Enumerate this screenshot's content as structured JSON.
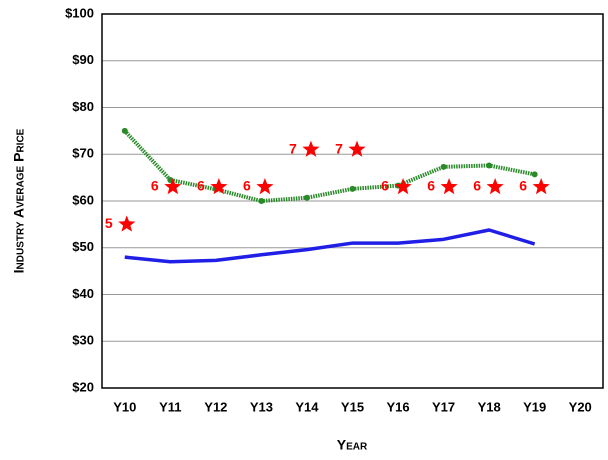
{
  "chart_data": {
    "type": "line",
    "xlabel": "Year",
    "ylabel": "Industry Average Price",
    "categories": [
      "Y10",
      "Y11",
      "Y12",
      "Y13",
      "Y14",
      "Y15",
      "Y16",
      "Y17",
      "Y18",
      "Y19",
      "Y20"
    ],
    "series": [
      {
        "color": "#1f1fe6",
        "style": "solid",
        "values": [
          48,
          47,
          47.3,
          48.5,
          49.6,
          51,
          51,
          51.8,
          53.8,
          50.8,
          null
        ]
      },
      {
        "color": "#2a8a2a",
        "style": "dotted",
        "values": [
          75,
          64.5,
          62.5,
          60,
          60.7,
          62.6,
          63.3,
          67.3,
          67.6,
          65.7,
          null
        ]
      }
    ],
    "stars": {
      "color": "#ff0000",
      "values": [
        55,
        63,
        63,
        63,
        71,
        71,
        63,
        63,
        63,
        63
      ],
      "labels": [
        "5",
        "6",
        "6",
        "6",
        "7",
        "7",
        "6",
        "6",
        "6",
        "6"
      ]
    },
    "ylim": [
      20,
      100
    ],
    "yticks": [
      {
        "value": 20,
        "label": "$20"
      },
      {
        "value": 30,
        "label": "$30"
      },
      {
        "value": 40,
        "label": "$40"
      },
      {
        "value": 50,
        "label": "$50"
      },
      {
        "value": 60,
        "label": "$60"
      },
      {
        "value": 70,
        "label": "$70"
      },
      {
        "value": 80,
        "label": "$80"
      },
      {
        "value": 90,
        "label": "$90"
      },
      {
        "value": 100,
        "label": "$100"
      }
    ],
    "grid": true
  }
}
